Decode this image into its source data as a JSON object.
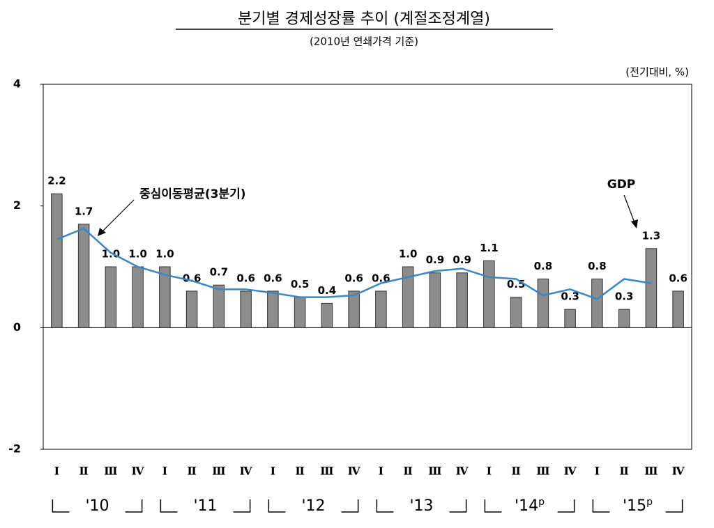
{
  "chart_data": {
    "type": "bar",
    "title": "분기별 경제성장률 추이 (계절조정계열)",
    "subtitle": "(2010년 연쇄가격 기준)",
    "unit_label": "(전기대비, %)",
    "categories": [
      "Ⅰ",
      "Ⅱ",
      "Ⅲ",
      "Ⅳ",
      "Ⅰ",
      "Ⅱ",
      "Ⅲ",
      "Ⅳ",
      "Ⅰ",
      "Ⅱ",
      "Ⅲ",
      "Ⅳ",
      "Ⅰ",
      "Ⅱ",
      "Ⅲ",
      "Ⅳ",
      "Ⅰ",
      "Ⅱ",
      "Ⅲ",
      "Ⅳ",
      "Ⅰ",
      "Ⅱ",
      "Ⅲ",
      "Ⅳ"
    ],
    "year_groups": [
      {
        "label": "'10"
      },
      {
        "label": "'11"
      },
      {
        "label": "'12"
      },
      {
        "label": "'13"
      },
      {
        "label": "'14",
        "mark": "p"
      },
      {
        "label": "'15",
        "mark": "p"
      }
    ],
    "series": [
      {
        "name": "GDP",
        "type": "bar",
        "color": "#8c8c8c",
        "values": [
          2.2,
          1.7,
          1.0,
          1.0,
          1.0,
          0.6,
          0.7,
          0.6,
          0.6,
          0.5,
          0.4,
          0.6,
          0.6,
          1.0,
          0.9,
          0.9,
          1.1,
          0.5,
          0.8,
          0.3,
          0.8,
          0.3,
          1.3,
          0.6
        ],
        "value_labels": [
          "2.2",
          "1.7",
          "1.0",
          "1.0",
          "1.0",
          "0.6",
          "0.7",
          "0.6",
          "0.6",
          "0.5",
          "0.4",
          "0.6",
          "0.6",
          "1.0",
          "0.9",
          "0.9",
          "1.1",
          "0.5",
          "0.8",
          "0.3",
          "0.8",
          "0.3",
          "1.3",
          "0.6"
        ]
      },
      {
        "name": "중심이동평균(3분기)",
        "type": "line",
        "color": "#3a87c8",
        "values": [
          1.45,
          1.63,
          1.23,
          1.0,
          0.87,
          0.77,
          0.63,
          0.63,
          0.57,
          0.5,
          0.5,
          0.53,
          0.73,
          0.83,
          0.93,
          0.97,
          0.83,
          0.8,
          0.53,
          0.63,
          0.47,
          0.8,
          0.73,
          null
        ]
      }
    ],
    "ylim": [
      -2,
      4
    ],
    "yticks": [
      -2,
      0,
      2,
      4
    ]
  }
}
